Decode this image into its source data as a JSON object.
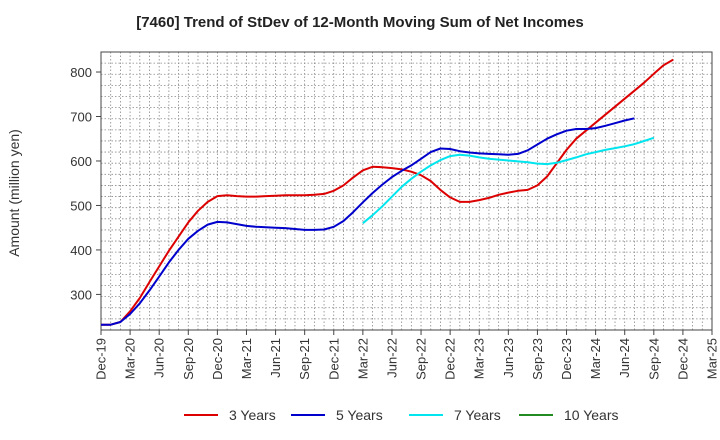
{
  "chart_data": {
    "type": "line",
    "title": "[7460]  Trend of StDev of 12-Month Moving Sum of Net Incomes",
    "xlabel": "",
    "ylabel": "Amount (million yen)",
    "ylim": [
      220,
      845
    ],
    "yticks": [
      300,
      400,
      500,
      600,
      700,
      800
    ],
    "x_tick_labels": [
      "Dec-19",
      "Mar-20",
      "Jun-20",
      "Sep-20",
      "Dec-20",
      "Mar-21",
      "Jun-21",
      "Sep-21",
      "Dec-21",
      "Mar-22",
      "Jun-22",
      "Sep-22",
      "Dec-22",
      "Mar-23",
      "Jun-23",
      "Sep-23",
      "Dec-23",
      "Mar-24",
      "Jun-24",
      "Sep-24",
      "Dec-24",
      "Mar-25"
    ],
    "grid": true,
    "legend_position": "bottom",
    "series": [
      {
        "name": "3 Years",
        "color": "#dd0000",
        "x_start": "Dec-19",
        "values": [
          232,
          232,
          238,
          262,
          292,
          328,
          363,
          398,
          430,
          462,
          488,
          508,
          521,
          523,
          521,
          520,
          520,
          521,
          522,
          523,
          523,
          523,
          524,
          526,
          533,
          545,
          563,
          579,
          587,
          586,
          584,
          581,
          576,
          568,
          555,
          535,
          518,
          508,
          508,
          512,
          517,
          524,
          529,
          533,
          535,
          545,
          565,
          595,
          625,
          650,
          668,
          686,
          704,
          722,
          740,
          758,
          776,
          796,
          815,
          828
        ]
      },
      {
        "name": "5 Years",
        "color": "#0000cc",
        "x_start": "Dec-19",
        "values": [
          232,
          232,
          238,
          256,
          280,
          309,
          340,
          372,
          400,
          425,
          443,
          457,
          463,
          462,
          458,
          454,
          452,
          451,
          450,
          449,
          447,
          445,
          445,
          446,
          452,
          465,
          485,
          507,
          528,
          547,
          564,
          578,
          590,
          605,
          620,
          628,
          627,
          622,
          619,
          617,
          616,
          615,
          614,
          616,
          624,
          637,
          650,
          660,
          668,
          672,
          672,
          674,
          679,
          685,
          691,
          696
        ]
      },
      {
        "name": "7 Years",
        "color": "#00e5ee",
        "x_start": "Mar-22",
        "values": [
          460,
          478,
          498,
          520,
          542,
          560,
          576,
          590,
          602,
          611,
          614,
          612,
          608,
          605,
          603,
          601,
          599,
          597,
          594,
          593,
          596,
          602,
          608,
          615,
          620,
          625,
          629,
          633,
          638,
          645,
          652
        ]
      },
      {
        "name": "10 Years",
        "color": "#228b22",
        "x_start": "Dec-24",
        "values": []
      }
    ]
  }
}
